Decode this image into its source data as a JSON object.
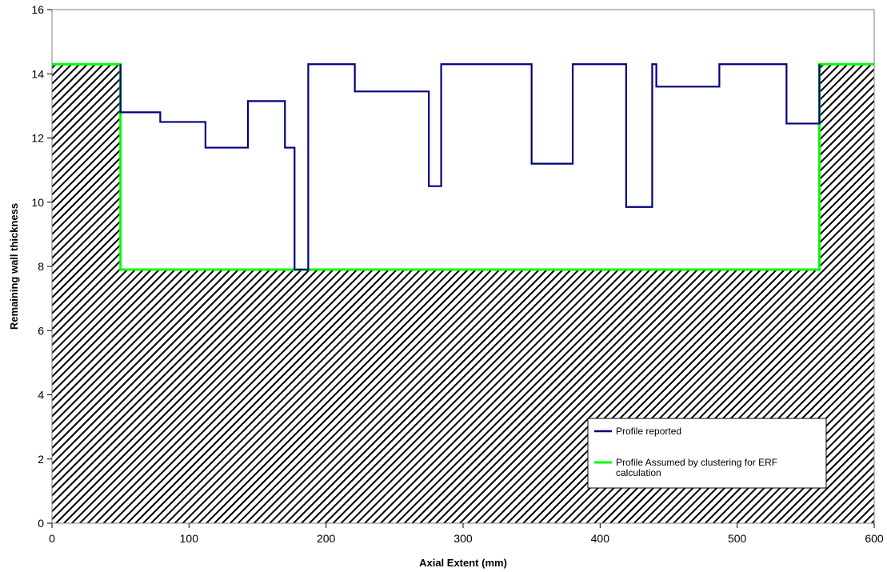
{
  "chart_data": {
    "type": "line",
    "title": "",
    "xlabel": "Axial Extent (mm)",
    "ylabel": "Remaining wall thickness",
    "xlim": [
      0,
      600
    ],
    "ylim": [
      0,
      16
    ],
    "x_ticks": [
      "0",
      "100",
      "200",
      "300",
      "400",
      "500",
      "600"
    ],
    "y_ticks": [
      "0",
      "2",
      "4",
      "6",
      "8",
      "10",
      "12",
      "14",
      "16"
    ],
    "grid": false,
    "legend_position": "bottom-right",
    "series": [
      {
        "name": "Profile reported",
        "color": "#000080",
        "step_points": [
          [
            50,
            14.3
          ],
          [
            50,
            12.8
          ],
          [
            79,
            12.8
          ],
          [
            79,
            12.5
          ],
          [
            112,
            12.5
          ],
          [
            112,
            11.7
          ],
          [
            143,
            11.7
          ],
          [
            143,
            13.15
          ],
          [
            170,
            13.15
          ],
          [
            170,
            11.7
          ],
          [
            177,
            11.7
          ],
          [
            177,
            7.9
          ],
          [
            187,
            7.9
          ],
          [
            187,
            14.3
          ],
          [
            221,
            14.3
          ],
          [
            221,
            13.45
          ],
          [
            275,
            13.45
          ],
          [
            275,
            10.5
          ],
          [
            284,
            10.5
          ],
          [
            284,
            14.3
          ],
          [
            350,
            14.3
          ],
          [
            350,
            11.2
          ],
          [
            380,
            11.2
          ],
          [
            380,
            14.3
          ],
          [
            419,
            14.3
          ],
          [
            419,
            9.85
          ],
          [
            438,
            9.85
          ],
          [
            438,
            14.3
          ],
          [
            441,
            14.3
          ],
          [
            441,
            13.6
          ],
          [
            487,
            13.6
          ],
          [
            487,
            14.3
          ],
          [
            536,
            14.3
          ],
          [
            536,
            12.45
          ],
          [
            560,
            12.45
          ],
          [
            560,
            14.3
          ]
        ]
      },
      {
        "name": "Profile Assumed by clustering for ERF calculation",
        "color": "#00ff00",
        "step_points": [
          [
            0,
            14.3
          ],
          [
            50,
            14.3
          ],
          [
            50,
            7.9
          ],
          [
            560,
            7.9
          ],
          [
            560,
            14.3
          ],
          [
            600,
            14.3
          ]
        ]
      }
    ],
    "legend": {
      "entries": [
        {
          "label_lines": [
            "Profile reported"
          ]
        },
        {
          "label_lines": [
            "Profile Assumed by clustering for ERF",
            "calculation"
          ]
        }
      ]
    },
    "colors": {
      "hatch": "#000000",
      "frame": "#808080",
      "background": "#ffffff"
    }
  }
}
